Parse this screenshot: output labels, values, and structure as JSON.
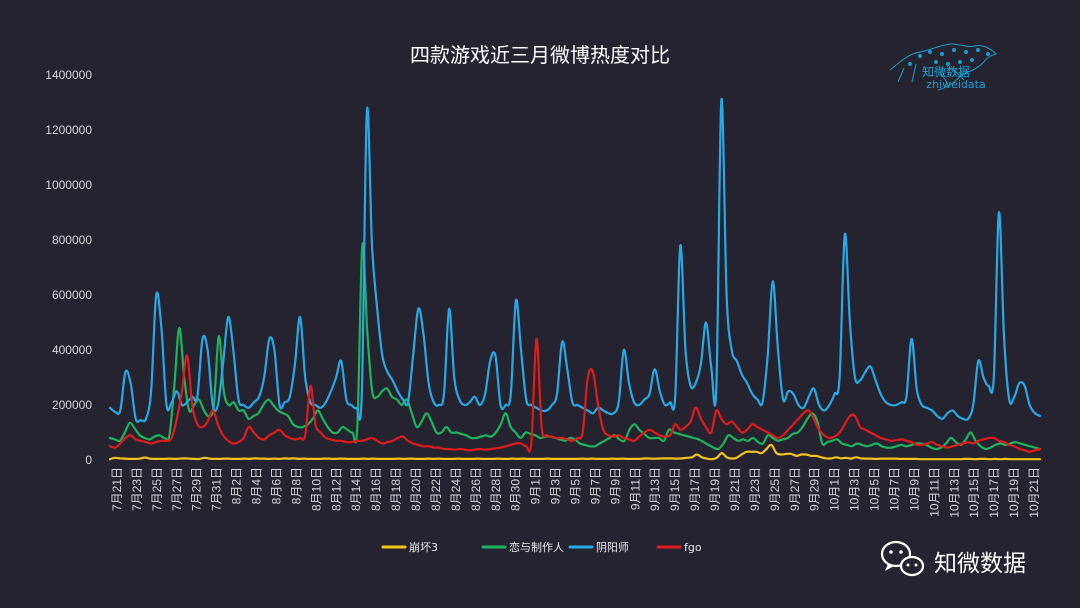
{
  "colors": {
    "background": "#24232f",
    "text": "#ffffff",
    "tick_text": "#d6d6dc",
    "brand": "#1aa3d7"
  },
  "brand": {
    "name": "知微数据",
    "domain": "zhiweidata"
  },
  "watermark": {
    "label": "知微数据",
    "icon": "wechat-icon"
  },
  "chart_data": {
    "type": "line",
    "title": "四款游戏近三月微博热度对比",
    "xlabel": "",
    "ylabel": "",
    "ylim": [
      0,
      1400000
    ],
    "yticks": [
      0,
      200000,
      400000,
      600000,
      800000,
      1000000,
      1200000,
      1400000
    ],
    "grid": false,
    "legend_position": "bottom",
    "x_tick_labels": [
      "7月21日",
      "7月23日",
      "7月25日",
      "7月27日",
      "7月29日",
      "7月31日",
      "8月2日",
      "8月4日",
      "8月6日",
      "8月8日",
      "8月10日",
      "8月12日",
      "8月14日",
      "8月16日",
      "8月18日",
      "8月20日",
      "8月22日",
      "8月24日",
      "8月26日",
      "8月28日",
      "8月30日",
      "9月1日",
      "9月3日",
      "9月5日",
      "9月7日",
      "9月9日",
      "9月11日",
      "9月13日",
      "9月15日",
      "9月17日",
      "9月19日",
      "9月21日",
      "9月23日",
      "9月25日",
      "9月27日",
      "9月29日",
      "10月1日",
      "10月3日",
      "10月5日",
      "10月7日",
      "10月9日",
      "10月11日",
      "10月13日",
      "10月15日",
      "10月17日",
      "10月19日",
      "10月21日"
    ],
    "series": [
      {
        "name": "崩坏3",
        "color": "#f3c31c",
        "values": [
          3000,
          8000,
          6000,
          5000,
          4000,
          4000,
          5000,
          9000,
          5000,
          4000,
          4000,
          4000,
          5000,
          4000,
          5000,
          6000,
          5000,
          4000,
          4000,
          8000,
          5000,
          4000,
          4000,
          5000,
          5000,
          4000,
          4000,
          5000,
          4000,
          6000,
          5000,
          5000,
          4000,
          5000,
          4000,
          6000,
          5000,
          6000,
          4000,
          5000,
          4000,
          4000,
          4000,
          5000,
          5000,
          4000,
          5000,
          5000,
          4000,
          4000,
          4000,
          5000,
          4000,
          5000,
          4000,
          4000,
          4000,
          4000,
          5000,
          4000,
          5000,
          5000,
          4000,
          4000,
          5000,
          4000,
          5000,
          4000,
          4000,
          4000,
          5000,
          4000,
          4000,
          4000,
          5000,
          4000,
          4000,
          4000,
          5000,
          4000,
          4000,
          5000,
          4000,
          5000,
          4000,
          4000,
          4000,
          4000,
          5000,
          4000,
          4000,
          4000,
          4000,
          4000,
          4000,
          5000,
          4000,
          5000,
          4000,
          4000,
          4000,
          5000,
          4000,
          5000,
          4000,
          4000,
          4000,
          5000,
          6000,
          5000,
          5000,
          6000,
          6000,
          6000,
          5000,
          6000,
          8000,
          10000,
          20000,
          10000,
          5000,
          3000,
          8000,
          25000,
          10000,
          5000,
          8000,
          20000,
          30000,
          30000,
          30000,
          25000,
          40000,
          55000,
          25000,
          20000,
          22000,
          22000,
          15000,
          20000,
          20000,
          15000,
          15000,
          10000,
          6000,
          6000,
          10000,
          6000,
          8000,
          5000,
          10000,
          6000,
          5000,
          5000,
          4000,
          5000,
          5000,
          5000,
          5000,
          4000,
          4000,
          4000,
          4000,
          3000,
          3000,
          3000,
          3000,
          3000,
          3000,
          3000,
          3000,
          3000,
          4000,
          4000,
          3000,
          4000,
          4000,
          3000,
          4000,
          3000,
          4000,
          3000,
          3000,
          3000,
          3000,
          3000,
          3000,
          3000
        ]
      },
      {
        "name": "恋与制作人",
        "color": "#1cb55c",
        "values": [
          80000,
          75000,
          70000,
          100000,
          135000,
          115000,
          90000,
          80000,
          75000,
          85000,
          90000,
          80000,
          90000,
          270000,
          480000,
          300000,
          180000,
          200000,
          220000,
          180000,
          160000,
          200000,
          450000,
          250000,
          200000,
          210000,
          180000,
          180000,
          150000,
          160000,
          170000,
          200000,
          220000,
          200000,
          180000,
          170000,
          160000,
          130000,
          120000,
          120000,
          130000,
          150000,
          180000,
          150000,
          120000,
          100000,
          100000,
          120000,
          110000,
          100000,
          120000,
          780000,
          470000,
          250000,
          230000,
          250000,
          260000,
          230000,
          220000,
          200000,
          220000,
          170000,
          120000,
          140000,
          170000,
          140000,
          100000,
          100000,
          120000,
          100000,
          100000,
          95000,
          90000,
          80000,
          80000,
          85000,
          90000,
          85000,
          100000,
          130000,
          170000,
          120000,
          100000,
          80000,
          100000,
          95000,
          90000,
          80000,
          85000,
          85000,
          80000,
          75000,
          70000,
          80000,
          75000,
          60000,
          55000,
          50000,
          50000,
          60000,
          70000,
          80000,
          90000,
          75000,
          70000,
          110000,
          130000,
          110000,
          95000,
          80000,
          80000,
          80000,
          70000,
          110000,
          100000,
          95000,
          90000,
          85000,
          80000,
          75000,
          65000,
          55000,
          45000,
          40000,
          60000,
          90000,
          80000,
          70000,
          75000,
          70000,
          80000,
          65000,
          60000,
          90000,
          80000,
          70000,
          75000,
          80000,
          95000,
          100000,
          120000,
          150000,
          170000,
          140000,
          60000,
          65000,
          70000,
          75000,
          60000,
          55000,
          50000,
          60000,
          55000,
          50000,
          55000,
          60000,
          50000,
          45000,
          45000,
          50000,
          55000,
          50000,
          55000,
          60000,
          60000,
          55000,
          45000,
          40000,
          45000,
          60000,
          80000,
          65000,
          55000,
          75000,
          100000,
          70000,
          50000,
          40000,
          45000,
          55000,
          60000,
          55000,
          60000,
          65000,
          60000,
          55000,
          50000,
          45000,
          40000
        ]
      },
      {
        "name": "阴阳师",
        "color": "#28a9e5",
        "values": [
          190000,
          175000,
          180000,
          320000,
          280000,
          150000,
          145000,
          150000,
          250000,
          600000,
          480000,
          200000,
          210000,
          250000,
          200000,
          210000,
          230000,
          230000,
          440000,
          400000,
          200000,
          200000,
          350000,
          520000,
          400000,
          220000,
          200000,
          190000,
          210000,
          230000,
          300000,
          440000,
          400000,
          200000,
          210000,
          230000,
          350000,
          520000,
          300000,
          210000,
          200000,
          190000,
          210000,
          250000,
          300000,
          360000,
          220000,
          200000,
          190000,
          240000,
          1270000,
          780000,
          550000,
          380000,
          320000,
          290000,
          250000,
          220000,
          210000,
          380000,
          550000,
          460000,
          280000,
          210000,
          200000,
          240000,
          550000,
          300000,
          220000,
          200000,
          210000,
          230000,
          200000,
          240000,
          360000,
          380000,
          200000,
          200000,
          240000,
          580000,
          400000,
          220000,
          200000,
          190000,
          180000,
          180000,
          200000,
          240000,
          430000,
          330000,
          210000,
          200000,
          190000,
          180000,
          170000,
          190000,
          180000,
          170000,
          170000,
          210000,
          400000,
          280000,
          210000,
          200000,
          220000,
          240000,
          330000,
          250000,
          200000,
          210000,
          230000,
          780000,
          400000,
          270000,
          280000,
          350000,
          500000,
          340000,
          260000,
          1310000,
          600000,
          400000,
          360000,
          310000,
          280000,
          240000,
          220000,
          210000,
          380000,
          650000,
          400000,
          220000,
          250000,
          240000,
          200000,
          190000,
          230000,
          260000,
          200000,
          180000,
          200000,
          240000,
          300000,
          820000,
          500000,
          300000,
          290000,
          320000,
          340000,
          290000,
          240000,
          210000,
          200000,
          200000,
          210000,
          230000,
          440000,
          260000,
          200000,
          190000,
          180000,
          160000,
          150000,
          170000,
          180000,
          160000,
          150000,
          150000,
          200000,
          360000,
          300000,
          270000,
          300000,
          900000,
          450000,
          220000,
          230000,
          280000,
          270000,
          200000,
          170000,
          160000
        ]
      },
      {
        "name": "fgo",
        "color": "#e01b1b",
        "values": [
          50000,
          45000,
          60000,
          80000,
          90000,
          75000,
          70000,
          65000,
          60000,
          65000,
          70000,
          70000,
          80000,
          150000,
          250000,
          380000,
          200000,
          130000,
          120000,
          140000,
          180000,
          130000,
          90000,
          70000,
          60000,
          65000,
          80000,
          120000,
          100000,
          80000,
          75000,
          90000,
          100000,
          110000,
          90000,
          80000,
          75000,
          80000,
          90000,
          270000,
          130000,
          100000,
          80000,
          75000,
          70000,
          70000,
          65000,
          65000,
          70000,
          70000,
          75000,
          80000,
          70000,
          60000,
          65000,
          70000,
          80000,
          85000,
          70000,
          60000,
          55000,
          50000,
          50000,
          45000,
          45000,
          40000,
          40000,
          38000,
          40000,
          38000,
          35000,
          38000,
          40000,
          38000,
          40000,
          42000,
          45000,
          50000,
          55000,
          60000,
          60000,
          50000,
          60000,
          440000,
          120000,
          90000,
          85000,
          80000,
          80000,
          75000,
          70000,
          80000,
          100000,
          300000,
          320000,
          200000,
          110000,
          90000,
          85000,
          90000,
          80000,
          75000,
          70000,
          85000,
          100000,
          110000,
          100000,
          90000,
          85000,
          90000,
          130000,
          110000,
          120000,
          140000,
          190000,
          150000,
          120000,
          100000,
          180000,
          150000,
          130000,
          140000,
          120000,
          100000,
          110000,
          130000,
          120000,
          110000,
          100000,
          90000,
          80000,
          90000,
          110000,
          130000,
          150000,
          170000,
          180000,
          150000,
          110000,
          90000,
          80000,
          85000,
          100000,
          130000,
          160000,
          160000,
          120000,
          110000,
          100000,
          90000,
          80000,
          75000,
          70000,
          72000,
          75000,
          70000,
          65000,
          55000,
          55000,
          60000,
          65000,
          55000,
          50000,
          45000,
          50000,
          55000,
          60000,
          65000,
          60000,
          70000,
          75000,
          80000,
          80000,
          70000,
          65000,
          55000,
          50000,
          40000,
          35000,
          30000,
          35000,
          40000
        ]
      }
    ]
  }
}
